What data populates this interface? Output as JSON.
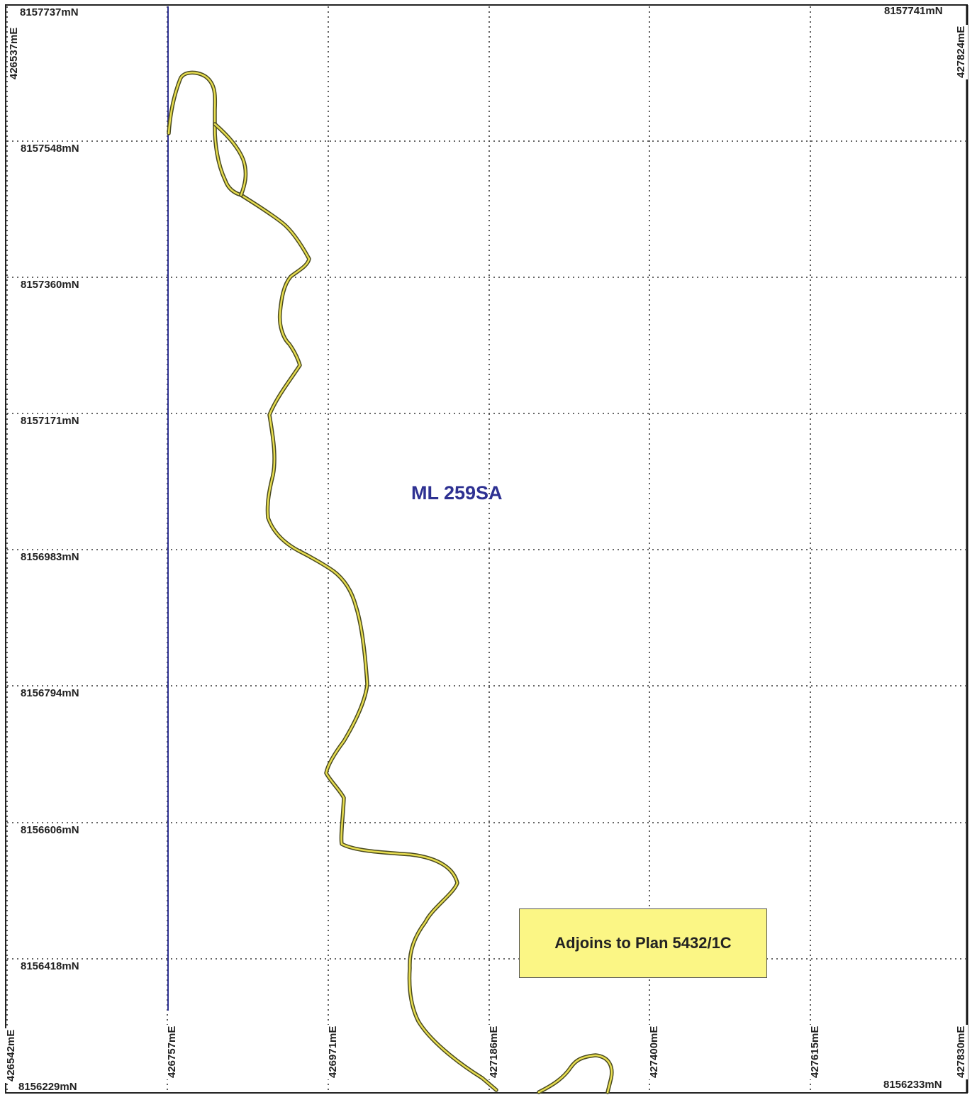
{
  "lease": {
    "name": "ML 259SA"
  },
  "adjoin_note": {
    "text": "Adjoins to Plan 5432/1C"
  },
  "northings": {
    "top_left": "8157737mN",
    "top_right": "8157741mN",
    "rows": [
      "8157548mN",
      "8157360mN",
      "8157171mN",
      "8156983mN",
      "8156794mN",
      "8156606mN",
      "8156418mN"
    ],
    "bottom_left": "8156229mN",
    "bottom_right": "8156233mN"
  },
  "eastings": {
    "top_left": "426537mE",
    "top_right": "427824mE",
    "bottom": [
      "426542mE",
      "426757mE",
      "426971mE",
      "427186mE",
      "427400mE",
      "427615mE",
      "427830mE"
    ]
  },
  "colors": {
    "lease_text": "#2e3192",
    "boundary_line": "#2e3192",
    "river_outline": "#4a4a20",
    "river_fill": "#e7dd4f",
    "note_fill": "#fbf685",
    "grid": "#333333"
  }
}
